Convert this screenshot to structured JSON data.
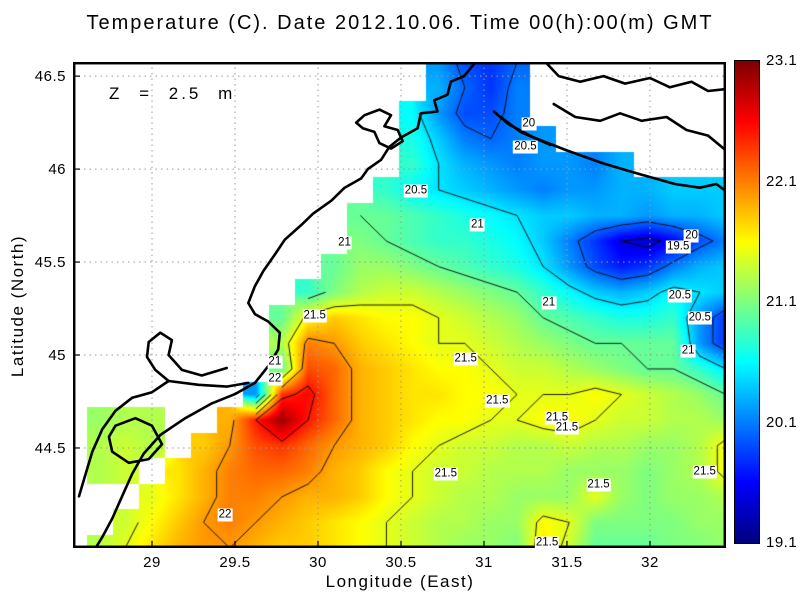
{
  "title": "Temperature (C). Date 2012.10.06. Time 00(h):00(m) GMT",
  "annotation": "Z = 2.5 m",
  "axes": {
    "x_label": "Longitude (East)",
    "y_label": "Latitude (North)",
    "x_ticks": [
      29,
      29.5,
      30,
      30.5,
      31,
      31.5,
      32
    ],
    "x_tick_labels": [
      "29",
      "29.5",
      "30",
      "30.5",
      "31",
      "31.5",
      "32"
    ],
    "y_ticks": [
      46.5,
      46,
      45.5,
      45,
      44.5
    ],
    "y_tick_labels": [
      "46.5",
      "46",
      "45.5",
      "45",
      "44.5"
    ],
    "grid_color": "#9a9a9a"
  },
  "colorbar": {
    "colormap": "jet",
    "min": 19.1,
    "max": 23.1,
    "tick_values": [
      23.1,
      22.1,
      21.1,
      20.1,
      19.1
    ],
    "tick_labels": [
      "23.1",
      "22.1",
      "21.1",
      "20.1",
      "19.1"
    ]
  },
  "chart_data": {
    "type": "heatmap",
    "subtype": "filled-contour-map-with-isolines",
    "title": "Temperature (C). Date 2012.10.06. Time 00(h):00(m) GMT",
    "xlabel": "Longitude (East)",
    "ylabel": "Latitude (North)",
    "annotation": "Z = 2.5 m",
    "lon_range": [
      28.524,
      32.458
    ],
    "lat_range": [
      43.962,
      46.576
    ],
    "clim": [
      19.1,
      23.1
    ],
    "colormap": "jet",
    "contour_levels": [
      19.5,
      20,
      20.5,
      21,
      21.5,
      22,
      22.5
    ],
    "grid": {
      "nx": 26,
      "ny": 20,
      "comment": "sea temperature (C) on lon/lat grid, row 0 = north (lat 46.576), col 0 = west (lon 28.524); null = land",
      "values": [
        [
          null,
          null,
          null,
          null,
          null,
          null,
          null,
          null,
          null,
          null,
          null,
          null,
          null,
          null,
          20.2,
          19.9,
          19.8,
          20.0,
          null,
          null,
          null,
          null,
          null,
          null,
          null,
          null
        ],
        [
          null,
          null,
          null,
          null,
          null,
          null,
          null,
          null,
          null,
          null,
          null,
          null,
          null,
          null,
          20.3,
          20.0,
          19.8,
          20.1,
          null,
          null,
          null,
          null,
          null,
          null,
          null,
          null
        ],
        [
          null,
          null,
          null,
          null,
          null,
          null,
          null,
          null,
          null,
          null,
          null,
          null,
          null,
          20.6,
          20.2,
          19.9,
          19.9,
          20.1,
          null,
          null,
          null,
          null,
          null,
          null,
          null,
          null
        ],
        [
          null,
          null,
          null,
          null,
          null,
          null,
          null,
          null,
          null,
          null,
          null,
          null,
          null,
          20.7,
          20.4,
          20.1,
          20.0,
          20.1,
          20.2,
          null,
          null,
          null,
          null,
          null,
          null,
          null
        ],
        [
          null,
          null,
          null,
          null,
          null,
          null,
          null,
          null,
          null,
          null,
          null,
          null,
          null,
          20.8,
          20.5,
          20.3,
          20.2,
          20.1,
          20.2,
          20.2,
          20.1,
          20.3,
          null,
          null,
          null,
          null
        ],
        [
          null,
          null,
          null,
          null,
          null,
          null,
          null,
          null,
          null,
          null,
          null,
          null,
          20.8,
          20.6,
          20.5,
          20.4,
          20.3,
          20.2,
          20.1,
          20.2,
          20.2,
          20.3,
          20.3,
          20.4,
          20.4,
          20.4
        ],
        [
          null,
          null,
          null,
          null,
          null,
          null,
          null,
          null,
          null,
          null,
          null,
          21.0,
          21.0,
          20.9,
          20.8,
          20.7,
          20.6,
          20.5,
          20.4,
          20.4,
          20.3,
          20.3,
          20.2,
          20.3,
          20.3,
          20.4
        ],
        [
          null,
          null,
          null,
          null,
          null,
          null,
          null,
          null,
          null,
          null,
          null,
          21.1,
          21.0,
          20.9,
          20.8,
          20.8,
          20.7,
          20.6,
          20.4,
          20.1,
          19.8,
          19.5,
          19.4,
          19.6,
          19.9,
          20.1
        ],
        [
          null,
          null,
          null,
          null,
          null,
          null,
          null,
          null,
          null,
          null,
          21.0,
          21.2,
          21.2,
          21.1,
          21.0,
          20.9,
          20.8,
          20.7,
          20.5,
          20.2,
          19.9,
          19.7,
          19.8,
          20.1,
          20.3,
          20.4
        ],
        [
          null,
          null,
          null,
          null,
          null,
          null,
          null,
          null,
          null,
          20.8,
          21.1,
          21.3,
          21.4,
          21.4,
          21.3,
          21.2,
          21.1,
          21.0,
          20.8,
          20.6,
          20.4,
          20.3,
          20.4,
          20.6,
          20.5,
          20.4
        ],
        [
          null,
          null,
          null,
          null,
          null,
          null,
          null,
          null,
          21.0,
          21.6,
          21.8,
          21.7,
          21.6,
          21.6,
          21.5,
          21.4,
          21.3,
          21.2,
          21.0,
          20.9,
          20.8,
          20.7,
          20.7,
          20.8,
          20.2,
          19.8
        ],
        [
          null,
          null,
          null,
          null,
          null,
          null,
          null,
          null,
          21.3,
          22.1,
          22.0,
          21.8,
          21.7,
          21.6,
          21.5,
          21.5,
          21.4,
          21.3,
          21.2,
          21.1,
          21.0,
          21.0,
          21.0,
          21.0,
          20.2,
          19.8
        ],
        [
          null,
          null,
          null,
          null,
          null,
          null,
          null,
          null,
          21.0,
          22.3,
          22.2,
          21.9,
          21.8,
          21.7,
          21.6,
          21.6,
          21.5,
          21.4,
          21.4,
          21.3,
          21.2,
          21.1,
          21.0,
          21.0,
          20.8,
          20.5
        ],
        [
          null,
          null,
          null,
          null,
          null,
          null,
          null,
          20.2,
          22.4,
          22.6,
          22.2,
          21.9,
          21.8,
          21.7,
          21.7,
          21.6,
          21.6,
          21.5,
          21.5,
          21.5,
          21.6,
          21.5,
          21.4,
          21.3,
          21.2,
          21.0
        ],
        [
          null,
          21.2,
          21.3,
          21.3,
          null,
          null,
          21.9,
          22.5,
          23.0,
          22.5,
          22.2,
          21.9,
          21.8,
          21.7,
          21.6,
          21.6,
          21.5,
          21.5,
          21.6,
          21.6,
          21.5,
          21.4,
          21.4,
          21.3,
          21.3,
          21.2
        ],
        [
          null,
          21.3,
          21.4,
          21.3,
          null,
          21.8,
          22.0,
          22.3,
          22.4,
          22.2,
          22.0,
          21.9,
          21.8,
          21.6,
          21.5,
          21.4,
          21.4,
          21.3,
          21.3,
          21.4,
          21.3,
          21.3,
          21.2,
          21.2,
          21.3,
          21.6
        ],
        [
          null,
          21.3,
          21.4,
          null,
          21.7,
          21.9,
          22.1,
          22.2,
          22.2,
          22.1,
          21.9,
          21.8,
          21.6,
          21.5,
          21.4,
          21.4,
          21.3,
          21.3,
          21.3,
          21.2,
          21.2,
          21.2,
          21.1,
          21.2,
          21.3,
          21.6
        ],
        [
          null,
          null,
          null,
          21.5,
          21.7,
          21.9,
          22.1,
          22.1,
          22.0,
          21.9,
          21.9,
          21.8,
          21.6,
          21.5,
          21.4,
          21.3,
          21.3,
          21.2,
          21.2,
          21.2,
          21.5,
          21.2,
          21.1,
          21.2,
          21.2,
          21.3
        ],
        [
          null,
          null,
          21.4,
          21.6,
          21.8,
          22.0,
          22.1,
          22.0,
          21.9,
          21.8,
          21.7,
          21.6,
          21.5,
          21.4,
          21.3,
          21.3,
          21.2,
          21.2,
          21.6,
          21.5,
          21.1,
          21.1,
          21.1,
          21.1,
          21.2,
          21.2
        ],
        [
          null,
          21.3,
          21.5,
          21.7,
          21.9,
          22.0,
          22.0,
          21.9,
          21.8,
          21.8,
          21.7,
          21.6,
          21.5,
          21.4,
          21.3,
          21.2,
          21.2,
          21.1,
          21.7,
          21.4,
          21.0,
          21.0,
          21.0,
          21.1,
          21.1,
          21.2
        ]
      ]
    },
    "contour_labels": [
      {
        "v": "20",
        "lon": 31.27,
        "lat": 46.24
      },
      {
        "v": "20.5",
        "lon": 31.25,
        "lat": 46.12
      },
      {
        "v": "20.5",
        "lon": 30.59,
        "lat": 45.88
      },
      {
        "v": "21",
        "lon": 30.96,
        "lat": 45.7
      },
      {
        "v": "20",
        "lon": 32.25,
        "lat": 45.64
      },
      {
        "v": "19.5",
        "lon": 32.17,
        "lat": 45.58
      },
      {
        "v": "21",
        "lon": 30.16,
        "lat": 45.6
      },
      {
        "v": "21",
        "lon": 31.39,
        "lat": 45.28
      },
      {
        "v": "20.5",
        "lon": 32.18,
        "lat": 45.32
      },
      {
        "v": "20.5",
        "lon": 32.3,
        "lat": 45.2
      },
      {
        "v": "21",
        "lon": 32.23,
        "lat": 45.02
      },
      {
        "v": "21.5",
        "lon": 29.98,
        "lat": 45.21
      },
      {
        "v": "21",
        "lon": 29.74,
        "lat": 44.96
      },
      {
        "v": "22",
        "lon": 29.74,
        "lat": 44.87
      },
      {
        "v": "21.5",
        "lon": 30.89,
        "lat": 44.98
      },
      {
        "v": "21.5",
        "lon": 31.08,
        "lat": 44.75
      },
      {
        "v": "21.5",
        "lon": 30.77,
        "lat": 44.36
      },
      {
        "v": "21.5",
        "lon": 31.44,
        "lat": 44.66
      },
      {
        "v": "21.5",
        "lon": 31.5,
        "lat": 44.61
      },
      {
        "v": "21.5",
        "lon": 31.69,
        "lat": 44.3
      },
      {
        "v": "21.5",
        "lon": 32.33,
        "lat": 44.37
      },
      {
        "v": "22",
        "lon": 29.44,
        "lat": 44.14
      },
      {
        "v": "21.5",
        "lon": 31.38,
        "lat": 43.99
      }
    ],
    "coastlines": [
      [
        [
          30.95,
          46.576
        ],
        [
          30.88,
          46.5
        ],
        [
          30.8,
          46.47
        ],
        [
          30.78,
          46.4
        ],
        [
          30.7,
          46.37
        ],
        [
          30.72,
          46.31
        ],
        [
          30.62,
          46.3
        ],
        [
          30.6,
          46.22
        ],
        [
          30.5,
          46.17
        ],
        [
          30.43,
          46.12
        ],
        [
          30.38,
          46.05
        ],
        [
          30.3,
          46.0
        ],
        [
          30.26,
          45.95
        ],
        [
          30.16,
          45.9
        ],
        [
          30.08,
          45.83
        ],
        [
          29.97,
          45.76
        ],
        [
          29.9,
          45.7
        ],
        [
          29.8,
          45.62
        ],
        [
          29.74,
          45.54
        ],
        [
          29.67,
          45.45
        ],
        [
          29.62,
          45.37
        ],
        [
          29.58,
          45.28
        ],
        [
          29.62,
          45.22
        ],
        [
          29.7,
          45.18
        ],
        [
          29.77,
          45.12
        ],
        [
          29.76,
          45.03
        ],
        [
          29.7,
          44.94
        ],
        [
          29.62,
          44.85
        ],
        [
          29.5,
          44.79
        ],
        [
          29.36,
          44.74
        ],
        [
          29.2,
          44.66
        ],
        [
          29.05,
          44.57
        ],
        [
          28.95,
          44.47
        ],
        [
          28.88,
          44.36
        ],
        [
          28.82,
          44.24
        ],
        [
          28.76,
          44.12
        ],
        [
          28.7,
          44.02
        ],
        [
          28.66,
          43.962
        ]
      ],
      [
        [
          30.28,
          46.29
        ],
        [
          30.37,
          46.32
        ],
        [
          30.44,
          46.29
        ],
        [
          30.4,
          46.23
        ],
        [
          30.48,
          46.21
        ],
        [
          30.51,
          46.15
        ],
        [
          30.44,
          46.11
        ],
        [
          30.37,
          46.14
        ],
        [
          30.34,
          46.2
        ],
        [
          30.27,
          46.22
        ],
        [
          30.23,
          46.25
        ],
        [
          30.28,
          46.29
        ]
      ],
      [
        [
          31.37,
          46.576
        ],
        [
          31.45,
          46.5
        ],
        [
          31.58,
          46.47
        ],
        [
          31.72,
          46.5
        ],
        [
          31.85,
          46.46
        ],
        [
          32.0,
          46.49
        ],
        [
          32.12,
          46.44
        ],
        [
          32.25,
          46.47
        ],
        [
          32.35,
          46.42
        ],
        [
          32.458,
          46.43
        ]
      ],
      [
        [
          31.42,
          46.35
        ],
        [
          31.55,
          46.28
        ],
        [
          31.7,
          46.26
        ],
        [
          31.82,
          46.3
        ],
        [
          31.95,
          46.26
        ],
        [
          32.1,
          46.28
        ],
        [
          32.22,
          46.21
        ],
        [
          32.35,
          46.18
        ],
        [
          32.458,
          46.1
        ]
      ],
      [
        [
          31.06,
          46.31
        ],
        [
          31.15,
          46.24
        ],
        [
          31.3,
          46.17
        ],
        [
          31.5,
          46.1
        ],
        [
          31.72,
          46.03
        ],
        [
          31.95,
          45.97
        ],
        [
          32.15,
          45.92
        ],
        [
          32.3,
          45.9
        ],
        [
          32.4,
          45.92
        ],
        [
          32.458,
          45.88
        ]
      ],
      [
        [
          31.1,
          46.28
        ],
        [
          31.22,
          46.2
        ],
        [
          31.4,
          46.13
        ]
      ],
      [
        [
          29.45,
          44.93
        ],
        [
          29.3,
          44.89
        ],
        [
          29.18,
          44.92
        ],
        [
          29.1,
          45.0
        ],
        [
          29.12,
          45.08
        ],
        [
          29.05,
          45.12
        ],
        [
          28.98,
          45.07
        ],
        [
          28.97,
          44.99
        ],
        [
          29.02,
          44.92
        ],
        [
          29.1,
          44.86
        ],
        [
          29.0,
          44.8
        ],
        [
          28.88,
          44.77
        ],
        [
          28.78,
          44.7
        ],
        [
          28.7,
          44.6
        ],
        [
          28.64,
          44.48
        ],
        [
          28.6,
          44.36
        ],
        [
          28.56,
          44.24
        ]
      ],
      [
        [
          28.78,
          44.62
        ],
        [
          28.9,
          44.66
        ],
        [
          29.0,
          44.62
        ],
        [
          29.06,
          44.52
        ],
        [
          28.98,
          44.44
        ],
        [
          28.86,
          44.42
        ],
        [
          28.76,
          44.48
        ],
        [
          28.74,
          44.56
        ],
        [
          28.78,
          44.62
        ]
      ],
      [
        [
          29.1,
          44.86
        ],
        [
          29.28,
          44.84
        ],
        [
          29.45,
          44.83
        ],
        [
          29.58,
          44.85
        ]
      ]
    ]
  }
}
